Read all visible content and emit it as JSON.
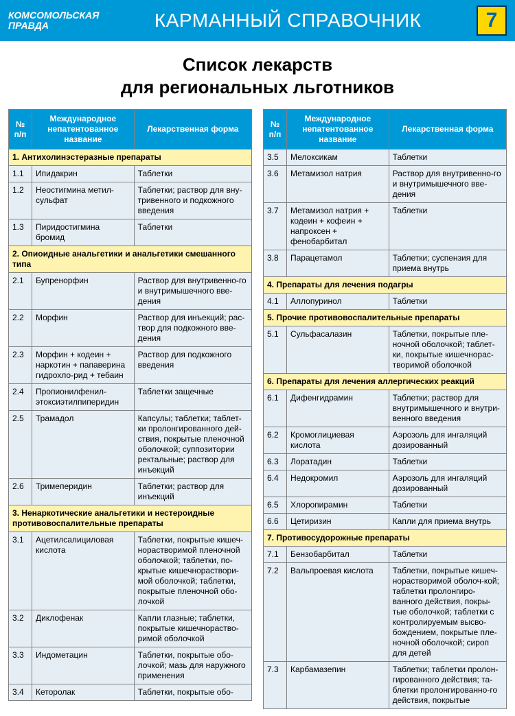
{
  "header": {
    "logo_line1": "Комсомольская",
    "logo_line2": "ПРАВДА",
    "title": "КАРМАННЫЙ СПРАВОЧНИК",
    "page_number": "7"
  },
  "main_title_line1": "Список лекарств",
  "main_title_line2": "для региональных льготников",
  "table_headers": {
    "num": "№ п/п",
    "name": "Международное непатентованное название",
    "form": "Лекарственная форма"
  },
  "colors": {
    "header_bg": "#0099d8",
    "header_fg": "#ffffff",
    "page_box_bg": "#ffd700",
    "page_box_fg": "#0066aa",
    "section_bg": "#fff3b0",
    "row_bg": "#e6eef5",
    "border": "#808080"
  },
  "left": [
    {
      "type": "section",
      "text": "1. Антихолинэстеразные препараты"
    },
    {
      "type": "row",
      "num": "1.1",
      "name": "Ипидакрин",
      "form": "Таблетки"
    },
    {
      "type": "row",
      "num": "1.2",
      "name": "Неостигмина метил-сульфат",
      "form": "Таблетки; раствор для вну-тривенного и подкожного введения"
    },
    {
      "type": "row",
      "num": "1.3",
      "name": "Пиридостигмина бромид",
      "form": "Таблетки"
    },
    {
      "type": "section",
      "text": "2. Опиоидные анальгетики и анальгетики смешанного типа"
    },
    {
      "type": "row",
      "num": "2.1",
      "name": "Бупренорфин",
      "form": "Раствор для внутривенно-го и внутримышечного вве-дения"
    },
    {
      "type": "row",
      "num": "2.2",
      "name": "Морфин",
      "form": "Раствор для инъекций; рас-твор для подкожного вве-дения"
    },
    {
      "type": "row",
      "num": "2.3",
      "name": "Морфин + кодеин + наркотин + папаверина гидрохло-рид + тебаин",
      "form": "Раствор для подкожного введения"
    },
    {
      "type": "row",
      "num": "2.4",
      "name": "Пропионилфенил-этоксиэтилпиперидин",
      "form": "Таблетки защечные"
    },
    {
      "type": "row",
      "num": "2.5",
      "name": "Трамадол",
      "form": "Капсулы; таблетки; таблет-ки пролонгированного дей-ствия, покрытые пленочной оболочкой; суппозитории ректальные; раствор для инъекций"
    },
    {
      "type": "row",
      "num": "2.6",
      "name": "Тримеперидин",
      "form": "Таблетки; раствор для инъекций"
    },
    {
      "type": "section",
      "text": "3. Ненаркотические анальгетики и нестероидные противовоспалительные препараты"
    },
    {
      "type": "row",
      "num": "3.1",
      "name": "Ацетилсалициловая кислота",
      "form": "Таблетки, покрытые кишеч-норастворимой пленочной оболочкой; таблетки, по-крытые кишечнораствори-мой оболочкой; таблетки, покрытые пленочной обо-лочкой"
    },
    {
      "type": "row",
      "num": "3.2",
      "name": "Диклофенак",
      "form": "Капли глазные; таблетки, покрытые кишечнораство-римой оболочкой"
    },
    {
      "type": "row",
      "num": "3.3",
      "name": "Индометацин",
      "form": "Таблетки, покрытые обо-лочкой; мазь для наружного применения"
    },
    {
      "type": "row",
      "num": "3.4",
      "name": "Кеторолак",
      "form": "Таблетки, покрытые обо-"
    }
  ],
  "right": [
    {
      "type": "row",
      "num": "3.5",
      "name": "Мелоксикам",
      "form": "Таблетки"
    },
    {
      "type": "row",
      "num": "3.6",
      "name": "Метамизол натрия",
      "form": "Раствор для внутривенно-го и внутримышечного вве-дения"
    },
    {
      "type": "row",
      "num": "3.7",
      "name": "Метамизол натрия + кодеин + кофеин + напроксен + фенобарбитал",
      "form": "Таблетки"
    },
    {
      "type": "row",
      "num": "3.8",
      "name": "Парацетамол",
      "form": "Таблетки; суспензия для приема внутрь"
    },
    {
      "type": "section",
      "text": "4. Препараты для лечения подагры"
    },
    {
      "type": "row",
      "num": "4.1",
      "name": "Аллопуринол",
      "form": "Таблетки"
    },
    {
      "type": "section",
      "text": "5. Прочие противовоспалительные препараты"
    },
    {
      "type": "row",
      "num": "5.1",
      "name": "Сульфасалазин",
      "form": "Таблетки, покрытые пле-ночной оболочкой; таблет-ки, покрытые кишечнорас-творимой оболочкой"
    },
    {
      "type": "section",
      "text": "6. Препараты для лечения аллергических реакций"
    },
    {
      "type": "row",
      "num": "6.1",
      "name": "Дифенгидрамин",
      "form": "Таблетки; раствор для внутримышечного и внутри-венного введения"
    },
    {
      "type": "row",
      "num": "6.2",
      "name": "Кромоглициевая кислота",
      "form": "Аэрозоль для ингаляций дозированный"
    },
    {
      "type": "row",
      "num": "6.3",
      "name": "Лоратадин",
      "form": "Таблетки"
    },
    {
      "type": "row",
      "num": "6.4",
      "name": "Недокромил",
      "form": "Аэрозоль для ингаляций дозированный"
    },
    {
      "type": "row",
      "num": "6.5",
      "name": "Хлоропирамин",
      "form": "Таблетки"
    },
    {
      "type": "row",
      "num": "6.6",
      "name": "Цетиризин",
      "form": "Капли для приема внутрь"
    },
    {
      "type": "section",
      "text": "7. Противосудорожные препараты"
    },
    {
      "type": "row",
      "num": "7.1",
      "name": "Бензобарбитал",
      "form": "Таблетки"
    },
    {
      "type": "row",
      "num": "7.2",
      "name": "Вальпроевая кислота",
      "form": "Таблетки, покрытые кишеч-норастворимой оболоч-кой; таблетки пролонгиро-ванного действия, покры-тые оболочкой; таблетки с контролируемым высво-бождением, покрытые пле-ночной оболочкой; сироп для детей"
    },
    {
      "type": "row",
      "num": "7.3",
      "name": "Карбамазепин",
      "form": "Таблетки; таблетки пролон-гированного действия; та-блетки пролонгированно-го действия, покрытые"
    }
  ]
}
